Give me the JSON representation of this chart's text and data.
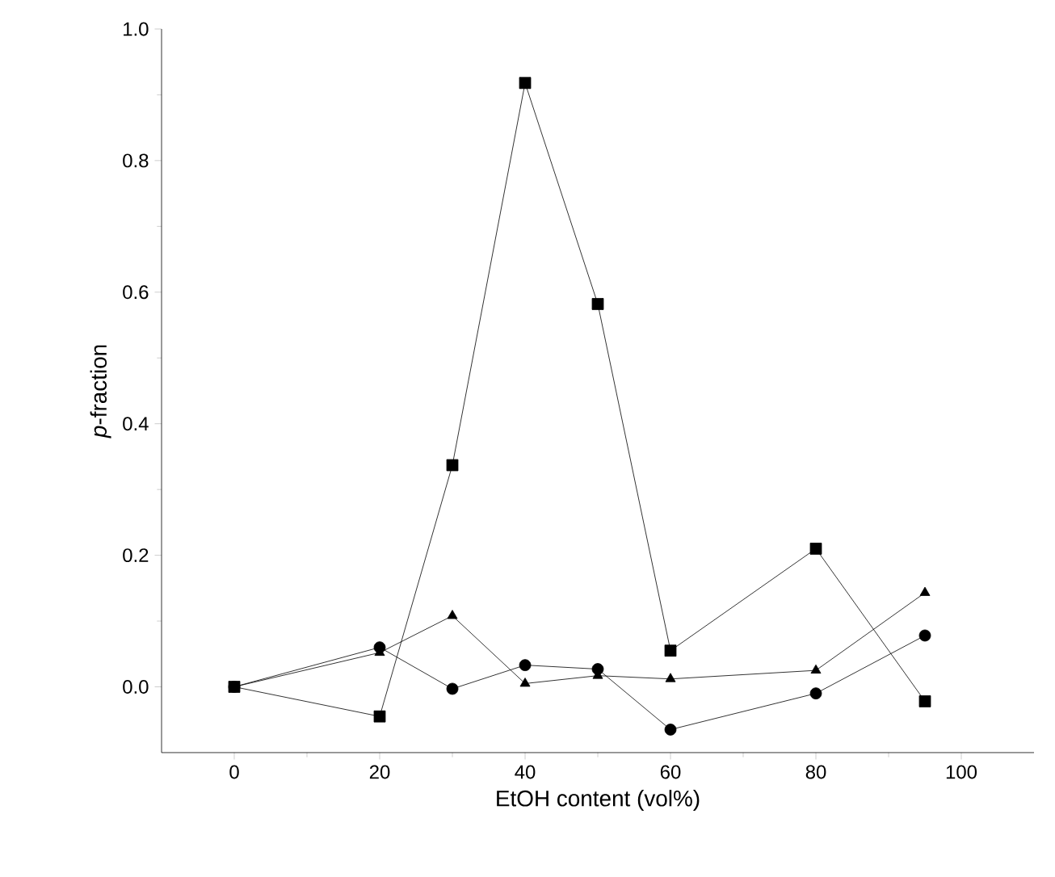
{
  "chart_data": {
    "type": "line",
    "xlabel": "EtOH content (vol%)",
    "ylabel": "*p*-fraction",
    "x": [
      0,
      20,
      30,
      40,
      50,
      60,
      80,
      95
    ],
    "series": [
      {
        "color": "#000000",
        "marker": "square",
        "values": [
          0,
          -0.045,
          0.337,
          0.918,
          0.582,
          0.055,
          0.21,
          -0.022
        ]
      },
      {
        "color": "#000000",
        "marker": "circle",
        "values": [
          0,
          0.06,
          -0.003,
          0.033,
          0.027,
          -0.065,
          -0.01,
          0.078
        ]
      },
      {
        "color": "#000000",
        "marker": "triangle",
        "values": [
          0,
          0.052,
          0.108,
          0.005,
          0.017,
          0.012,
          0.025,
          0.143
        ]
      }
    ],
    "xlim": [
      -10,
      110
    ],
    "ylim": [
      -0.1,
      1.0
    ],
    "xticks": [
      0,
      20,
      40,
      60,
      80,
      100
    ],
    "yticks": [
      {
        "value": 0,
        "label": "0.0"
      },
      {
        "value": 0.2,
        "label": "0.2"
      },
      {
        "value": 0.4,
        "label": "0.4"
      },
      {
        "value": 0.6,
        "label": "0.6"
      },
      {
        "value": 0.8,
        "label": "0.8"
      },
      {
        "value": 1.0,
        "label": "1.0"
      }
    ],
    "grid": false,
    "line_style": "solid"
  }
}
